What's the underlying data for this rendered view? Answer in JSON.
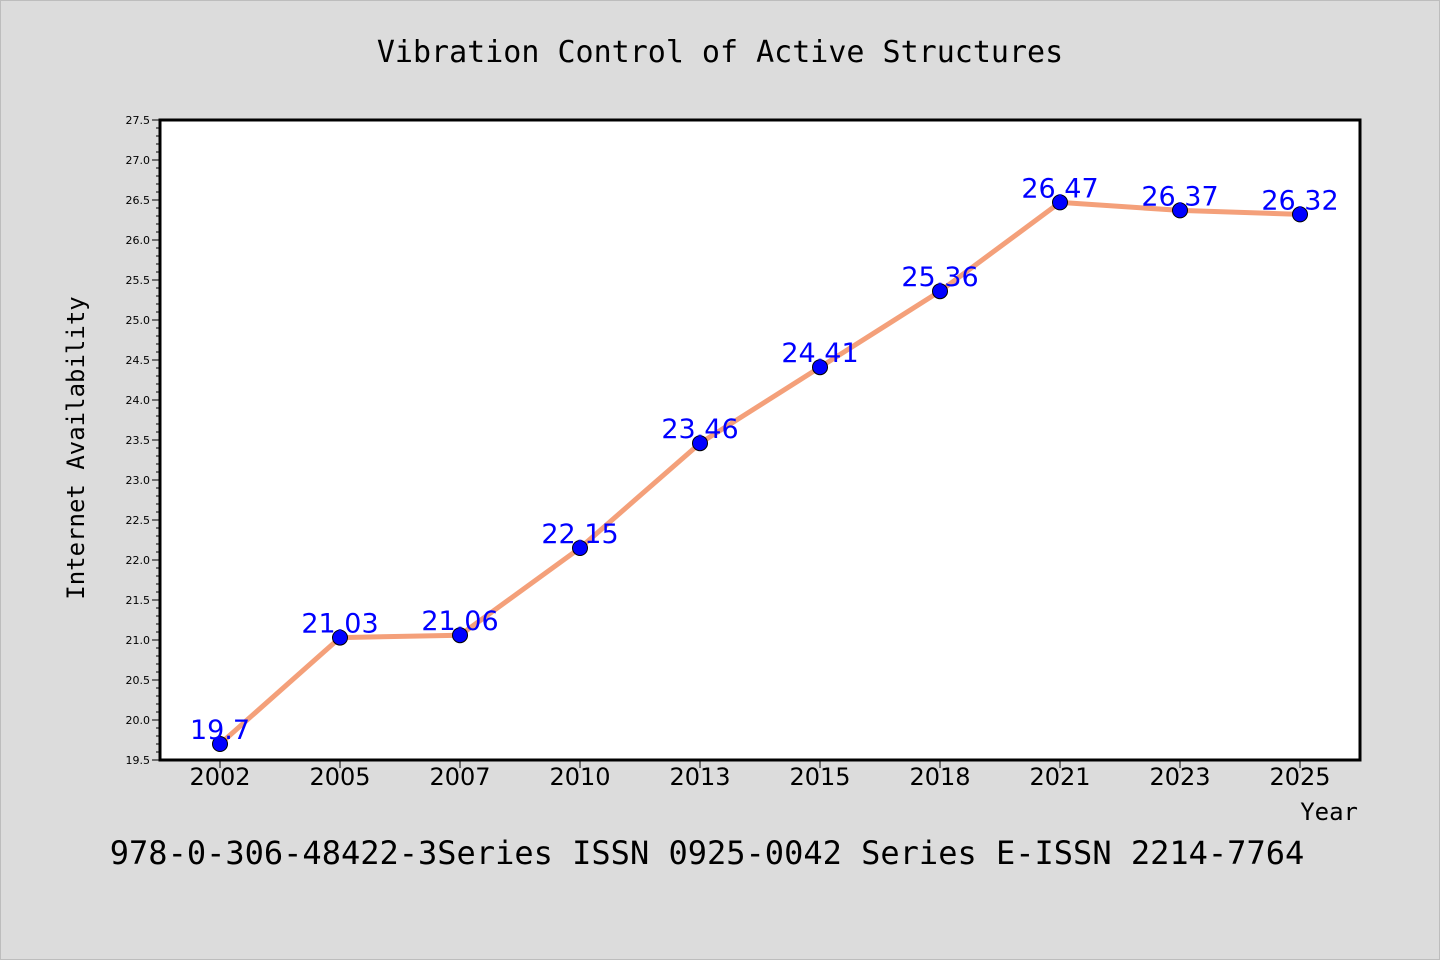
{
  "chart_data": {
    "type": "line",
    "title": "Vibration Control of Active Structures",
    "xlabel": "Year",
    "ylabel": "Internet Availability",
    "categories": [
      "2002",
      "2005",
      "2007",
      "2010",
      "2013",
      "2015",
      "2018",
      "2021",
      "2023",
      "2025"
    ],
    "values": [
      19.7,
      21.03,
      21.06,
      22.15,
      23.46,
      24.41,
      25.36,
      26.47,
      26.37,
      26.32
    ],
    "data_labels": [
      "19.7",
      "21.03",
      "21.06",
      "22.15",
      "23.46",
      "24.41",
      "25.36",
      "26.47",
      "26.37",
      "26.32"
    ],
    "ylim": [
      19.5,
      27.5
    ],
    "yticks": [
      "19.5",
      "20.0",
      "20.5",
      "21.0",
      "21.5",
      "22.0",
      "22.5",
      "23.0",
      "23.5",
      "24.0",
      "24.5",
      "25.0",
      "25.5",
      "26.0",
      "26.5",
      "27.0",
      "27.5"
    ],
    "grid": false,
    "legend": "none",
    "footer": "978-0-306-48422-3Series ISSN 0925-0042 Series E-ISSN 2214-7764",
    "colors": {
      "background": "#dcdcdc",
      "plot_background": "#ffffff",
      "line": "#f4a07a",
      "marker": "#0000ff",
      "data_label": "#0000ff",
      "text": "#000000"
    }
  }
}
